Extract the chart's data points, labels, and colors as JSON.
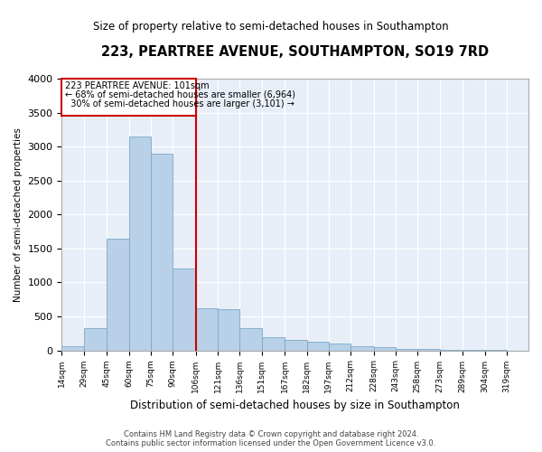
{
  "title": "223, PEARTREE AVENUE, SOUTHAMPTON, SO19 7RD",
  "subtitle": "Size of property relative to semi-detached houses in Southampton",
  "xlabel": "Distribution of semi-detached houses by size in Southampton",
  "ylabel": "Number of semi-detached properties",
  "footnote": "Contains HM Land Registry data © Crown copyright and database right 2024.\nContains public sector information licensed under the Open Government Licence v3.0.",
  "bar_color": "#b8d0e8",
  "bar_edge_color": "#7aaac8",
  "background_color": "#e8eef8",
  "grid_color": "#ffffff",
  "property_label": "223 PEARTREE AVENUE: 101sqm",
  "pct_smaller": 68,
  "n_smaller": 6964,
  "pct_larger": 30,
  "n_larger": 3101,
  "vline_color": "#cc0000",
  "box_color": "#cc0000",
  "categories": [
    "14sqm",
    "29sqm",
    "45sqm",
    "60sqm",
    "75sqm",
    "90sqm",
    "106sqm",
    "121sqm",
    "136sqm",
    "151sqm",
    "167sqm",
    "182sqm",
    "197sqm",
    "212sqm",
    "228sqm",
    "243sqm",
    "258sqm",
    "273sqm",
    "289sqm",
    "304sqm",
    "319sqm"
  ],
  "bin_edges": [
    14,
    29,
    45,
    60,
    75,
    90,
    106,
    121,
    136,
    151,
    167,
    182,
    197,
    212,
    228,
    243,
    258,
    273,
    289,
    304,
    319,
    334
  ],
  "bar_heights": [
    55,
    330,
    1650,
    3150,
    2900,
    1200,
    620,
    600,
    330,
    200,
    150,
    130,
    100,
    60,
    50,
    25,
    15,
    5,
    3,
    2,
    0
  ],
  "ylim": [
    0,
    4000
  ],
  "yticks": [
    0,
    500,
    1000,
    1500,
    2000,
    2500,
    3000,
    3500,
    4000
  ],
  "vline_x": 106
}
